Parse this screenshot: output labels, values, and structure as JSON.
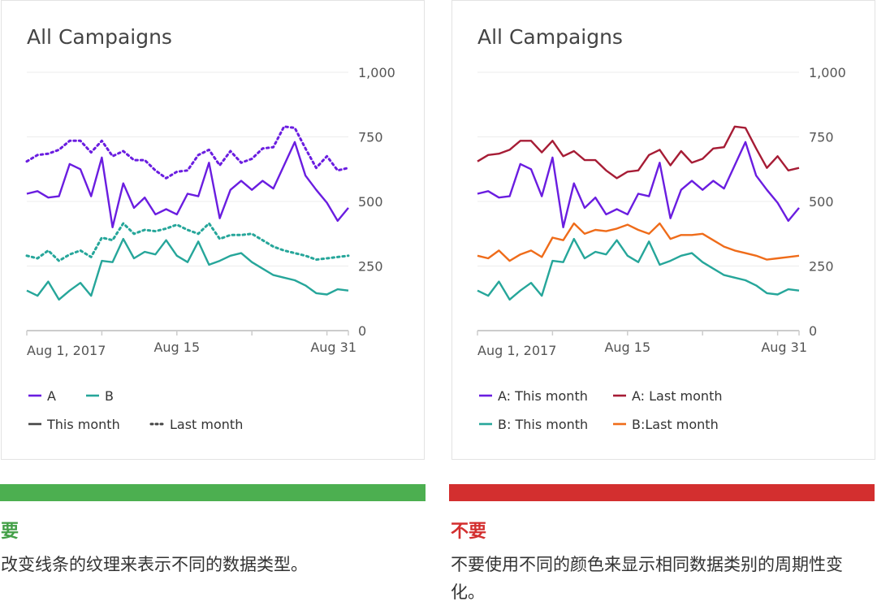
{
  "chart_data": [
    {
      "type": "line",
      "title": "All Campaigns",
      "x_tick_labels": [
        "Aug 1, 2017",
        "Aug 15",
        "Aug 31"
      ],
      "y_ticks": [
        0,
        250,
        500,
        750,
        1000
      ],
      "y_tick_labels": [
        "0",
        "250",
        "500",
        "750",
        "1,000"
      ],
      "ylim": [
        0,
        1000
      ],
      "x": [
        1,
        2,
        3,
        4,
        5,
        6,
        7,
        8,
        9,
        10,
        11,
        12,
        13,
        14,
        15,
        16,
        17,
        18,
        19,
        20,
        21,
        22,
        23,
        24,
        25,
        26,
        27,
        28,
        29,
        30,
        31
      ],
      "grid": true,
      "legend_position": "bottom",
      "legend_rows": [
        [
          {
            "label": "A",
            "color": "#6a1de0",
            "style": "solid"
          },
          {
            "label": "B",
            "color": "#26a69a",
            "style": "solid"
          }
        ],
        [
          {
            "label": "This month",
            "color": "#444444",
            "style": "solid"
          },
          {
            "label": "Last month",
            "color": "#444444",
            "style": "dotted"
          }
        ]
      ],
      "series": [
        {
          "color": "#6a1de0",
          "style": "dotted",
          "values": [
            655,
            680,
            685,
            700,
            735,
            735,
            690,
            735,
            675,
            695,
            660,
            660,
            620,
            590,
            615,
            620,
            680,
            700,
            640,
            695,
            650,
            665,
            705,
            710,
            790,
            785,
            705,
            630,
            675,
            620,
            630
          ]
        },
        {
          "color": "#6a1de0",
          "style": "solid",
          "values": [
            530,
            540,
            515,
            520,
            645,
            625,
            520,
            670,
            400,
            570,
            475,
            515,
            450,
            470,
            450,
            530,
            520,
            650,
            435,
            545,
            580,
            545,
            580,
            550,
            640,
            730,
            600,
            545,
            495,
            425,
            475
          ]
        },
        {
          "color": "#26a69a",
          "style": "dotted",
          "values": [
            290,
            280,
            310,
            270,
            295,
            310,
            285,
            360,
            350,
            415,
            375,
            390,
            385,
            395,
            410,
            390,
            375,
            415,
            355,
            370,
            370,
            375,
            350,
            325,
            310,
            300,
            290,
            275,
            280,
            285,
            290
          ]
        },
        {
          "color": "#26a69a",
          "style": "solid",
          "values": [
            155,
            135,
            190,
            120,
            155,
            185,
            135,
            270,
            265,
            355,
            280,
            305,
            295,
            350,
            290,
            265,
            345,
            255,
            270,
            290,
            300,
            265,
            240,
            215,
            205,
            195,
            175,
            145,
            140,
            160,
            155
          ]
        }
      ]
    },
    {
      "type": "line",
      "title": "All Campaigns",
      "x_tick_labels": [
        "Aug 1, 2017",
        "Aug 15",
        "Aug 31"
      ],
      "y_ticks": [
        0,
        250,
        500,
        750,
        1000
      ],
      "y_tick_labels": [
        "0",
        "250",
        "500",
        "750",
        "1,000"
      ],
      "ylim": [
        0,
        1000
      ],
      "x": [
        1,
        2,
        3,
        4,
        5,
        6,
        7,
        8,
        9,
        10,
        11,
        12,
        13,
        14,
        15,
        16,
        17,
        18,
        19,
        20,
        21,
        22,
        23,
        24,
        25,
        26,
        27,
        28,
        29,
        30,
        31
      ],
      "grid": true,
      "legend_position": "bottom",
      "legend_rows": [
        [
          {
            "label": "A: This month",
            "color": "#6a1de0",
            "style": "solid"
          },
          {
            "label": "A: Last month",
            "color": "#a61c35",
            "style": "solid"
          }
        ],
        [
          {
            "label": "B: This month",
            "color": "#26a69a",
            "style": "solid"
          },
          {
            "label": "B:Last month",
            "color": "#ef6c1a",
            "style": "solid"
          }
        ]
      ],
      "series": [
        {
          "name": "A: Last month",
          "color": "#a61c35",
          "style": "solid",
          "values": [
            655,
            680,
            685,
            700,
            735,
            735,
            690,
            735,
            675,
            695,
            660,
            660,
            620,
            590,
            615,
            620,
            680,
            700,
            640,
            695,
            650,
            665,
            705,
            710,
            790,
            785,
            705,
            630,
            675,
            620,
            630
          ]
        },
        {
          "name": "A: This month",
          "color": "#6a1de0",
          "style": "solid",
          "values": [
            530,
            540,
            515,
            520,
            645,
            625,
            520,
            670,
            400,
            570,
            475,
            515,
            450,
            470,
            450,
            530,
            520,
            650,
            435,
            545,
            580,
            545,
            580,
            550,
            640,
            730,
            600,
            545,
            495,
            425,
            475
          ]
        },
        {
          "name": "B:Last month",
          "color": "#ef6c1a",
          "style": "solid",
          "values": [
            290,
            280,
            310,
            270,
            295,
            310,
            285,
            360,
            350,
            415,
            375,
            390,
            385,
            395,
            410,
            390,
            375,
            415,
            355,
            370,
            370,
            375,
            350,
            325,
            310,
            300,
            290,
            275,
            280,
            285,
            290
          ]
        },
        {
          "name": "B: This month",
          "color": "#26a69a",
          "style": "solid",
          "values": [
            155,
            135,
            190,
            120,
            155,
            185,
            135,
            270,
            265,
            355,
            280,
            305,
            295,
            350,
            290,
            265,
            345,
            255,
            270,
            290,
            300,
            265,
            240,
            215,
            205,
            195,
            175,
            145,
            140,
            160,
            155
          ]
        }
      ]
    }
  ],
  "panels": [
    {
      "verdict": "要",
      "description": "改变线条的纹理来表示不同的数据类型。",
      "color": "#4caf50"
    },
    {
      "verdict": "不要",
      "description": "不要使用不同的颜色来显示相同数据类别的周期性变化。",
      "color": "#d32f2f"
    }
  ]
}
